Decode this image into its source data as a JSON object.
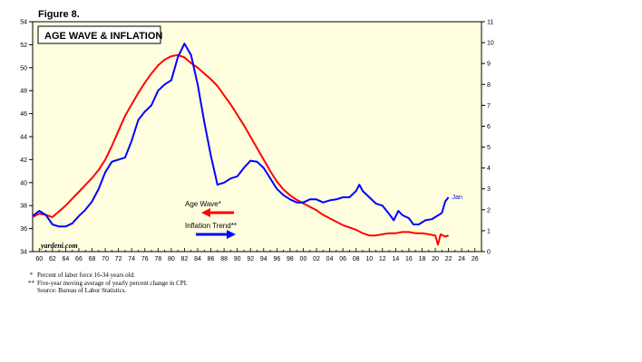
{
  "figure_label": "Figure 8.",
  "chart_data": {
    "type": "line",
    "title": "AGE WAVE & INFLATION",
    "source_watermark": "yardeni.com",
    "x_ticks": [
      "60",
      "62",
      "64",
      "66",
      "68",
      "70",
      "72",
      "74",
      "76",
      "78",
      "80",
      "82",
      "84",
      "86",
      "88",
      "90",
      "92",
      "94",
      "96",
      "98",
      "00",
      "02",
      "04",
      "06",
      "08",
      "10",
      "12",
      "14",
      "16",
      "18",
      "20",
      "22",
      "24",
      "26"
    ],
    "x_range": [
      1959,
      2027
    ],
    "y_left": {
      "range": [
        34,
        54
      ],
      "ticks": [
        34,
        36,
        38,
        40,
        42,
        44,
        46,
        48,
        50,
        52,
        54
      ]
    },
    "y_right": {
      "range": [
        0,
        11
      ],
      "ticks": [
        0,
        1,
        2,
        3,
        4,
        5,
        6,
        7,
        8,
        9,
        10,
        11
      ]
    },
    "grid": false,
    "background": "#ffffe0",
    "end_annotation": "Jan",
    "series": [
      {
        "name": "Age Wave*",
        "axis": "left",
        "color": "#ff0000",
        "points": [
          [
            1959,
            37.0
          ],
          [
            1960,
            37.3
          ],
          [
            1961,
            37.2
          ],
          [
            1962,
            37.0
          ],
          [
            1963,
            37.5
          ],
          [
            1964,
            38.0
          ],
          [
            1965,
            38.6
          ],
          [
            1966,
            39.2
          ],
          [
            1967,
            39.8
          ],
          [
            1968,
            40.4
          ],
          [
            1969,
            41.1
          ],
          [
            1970,
            42.0
          ],
          [
            1971,
            43.2
          ],
          [
            1972,
            44.5
          ],
          [
            1973,
            45.8
          ],
          [
            1974,
            46.8
          ],
          [
            1975,
            47.8
          ],
          [
            1976,
            48.7
          ],
          [
            1977,
            49.5
          ],
          [
            1978,
            50.2
          ],
          [
            1979,
            50.7
          ],
          [
            1980,
            51.0
          ],
          [
            1981,
            51.1
          ],
          [
            1982,
            50.9
          ],
          [
            1983,
            50.4
          ],
          [
            1984,
            50.0
          ],
          [
            1985,
            49.5
          ],
          [
            1986,
            49.0
          ],
          [
            1987,
            48.4
          ],
          [
            1988,
            47.6
          ],
          [
            1989,
            46.8
          ],
          [
            1990,
            45.9
          ],
          [
            1991,
            45.0
          ],
          [
            1992,
            44.0
          ],
          [
            1993,
            43.0
          ],
          [
            1994,
            42.0
          ],
          [
            1995,
            41.0
          ],
          [
            1996,
            40.1
          ],
          [
            1997,
            39.4
          ],
          [
            1998,
            38.9
          ],
          [
            1999,
            38.5
          ],
          [
            2000,
            38.2
          ],
          [
            2001,
            37.9
          ],
          [
            2002,
            37.6
          ],
          [
            2003,
            37.2
          ],
          [
            2004,
            36.9
          ],
          [
            2005,
            36.6
          ],
          [
            2006,
            36.3
          ],
          [
            2007,
            36.1
          ],
          [
            2008,
            35.9
          ],
          [
            2009,
            35.6
          ],
          [
            2010,
            35.4
          ],
          [
            2011,
            35.4
          ],
          [
            2012,
            35.5
          ],
          [
            2013,
            35.6
          ],
          [
            2014,
            35.6
          ],
          [
            2015,
            35.7
          ],
          [
            2016,
            35.7
          ],
          [
            2017,
            35.6
          ],
          [
            2018,
            35.6
          ],
          [
            2019,
            35.5
          ],
          [
            2020,
            35.4
          ],
          [
            2020.4,
            34.6
          ],
          [
            2020.8,
            35.5
          ],
          [
            2021.5,
            35.3
          ],
          [
            2022,
            35.4
          ]
        ]
      },
      {
        "name": "Inflation Trend**",
        "axis": "right",
        "color": "#0000ff",
        "points": [
          [
            1959,
            1.7
          ],
          [
            1960,
            1.95
          ],
          [
            1961,
            1.75
          ],
          [
            1962,
            1.3
          ],
          [
            1963,
            1.2
          ],
          [
            1964,
            1.2
          ],
          [
            1965,
            1.35
          ],
          [
            1966,
            1.7
          ],
          [
            1967,
            2.0
          ],
          [
            1968,
            2.4
          ],
          [
            1969,
            3.0
          ],
          [
            1970,
            3.8
          ],
          [
            1971,
            4.3
          ],
          [
            1972,
            4.4
          ],
          [
            1973,
            4.5
          ],
          [
            1974,
            5.3
          ],
          [
            1975,
            6.3
          ],
          [
            1976,
            6.7
          ],
          [
            1977,
            7.0
          ],
          [
            1978,
            7.7
          ],
          [
            1979,
            8.0
          ],
          [
            1980,
            8.2
          ],
          [
            1981,
            9.3
          ],
          [
            1982,
            9.95
          ],
          [
            1983,
            9.4
          ],
          [
            1984,
            8.0
          ],
          [
            1985,
            6.2
          ],
          [
            1986,
            4.6
          ],
          [
            1987,
            3.2
          ],
          [
            1988,
            3.3
          ],
          [
            1989,
            3.5
          ],
          [
            1990,
            3.6
          ],
          [
            1991,
            4.0
          ],
          [
            1992,
            4.35
          ],
          [
            1993,
            4.3
          ],
          [
            1994,
            4.0
          ],
          [
            1995,
            3.5
          ],
          [
            1996,
            3.0
          ],
          [
            1997,
            2.7
          ],
          [
            1998,
            2.5
          ],
          [
            1999,
            2.35
          ],
          [
            2000,
            2.35
          ],
          [
            2001,
            2.5
          ],
          [
            2002,
            2.5
          ],
          [
            2003,
            2.35
          ],
          [
            2004,
            2.45
          ],
          [
            2005,
            2.5
          ],
          [
            2006,
            2.6
          ],
          [
            2007,
            2.6
          ],
          [
            2008,
            2.9
          ],
          [
            2008.5,
            3.2
          ],
          [
            2009,
            2.9
          ],
          [
            2010,
            2.6
          ],
          [
            2011,
            2.3
          ],
          [
            2012,
            2.2
          ],
          [
            2013,
            1.8
          ],
          [
            2013.7,
            1.5
          ],
          [
            2014.4,
            1.95
          ],
          [
            2015,
            1.75
          ],
          [
            2016,
            1.6
          ],
          [
            2016.7,
            1.3
          ],
          [
            2017.5,
            1.3
          ],
          [
            2018.5,
            1.5
          ],
          [
            2019.5,
            1.55
          ],
          [
            2020,
            1.65
          ],
          [
            2021,
            1.85
          ],
          [
            2021.5,
            2.4
          ],
          [
            2022,
            2.6
          ]
        ]
      }
    ]
  },
  "legend": [
    {
      "label": "Age Wave*",
      "color": "#ff0000"
    },
    {
      "label": "Inflation Trend**",
      "color": "#0000ff"
    }
  ],
  "footnotes": [
    {
      "mark": "*",
      "text": "Percent of labor force 16-34 years old."
    },
    {
      "mark": "**",
      "text": "Five-year moving average of yearly percent change in CPI."
    },
    {
      "mark": "",
      "text": "Source: Bureau of Labor Statistics."
    }
  ]
}
